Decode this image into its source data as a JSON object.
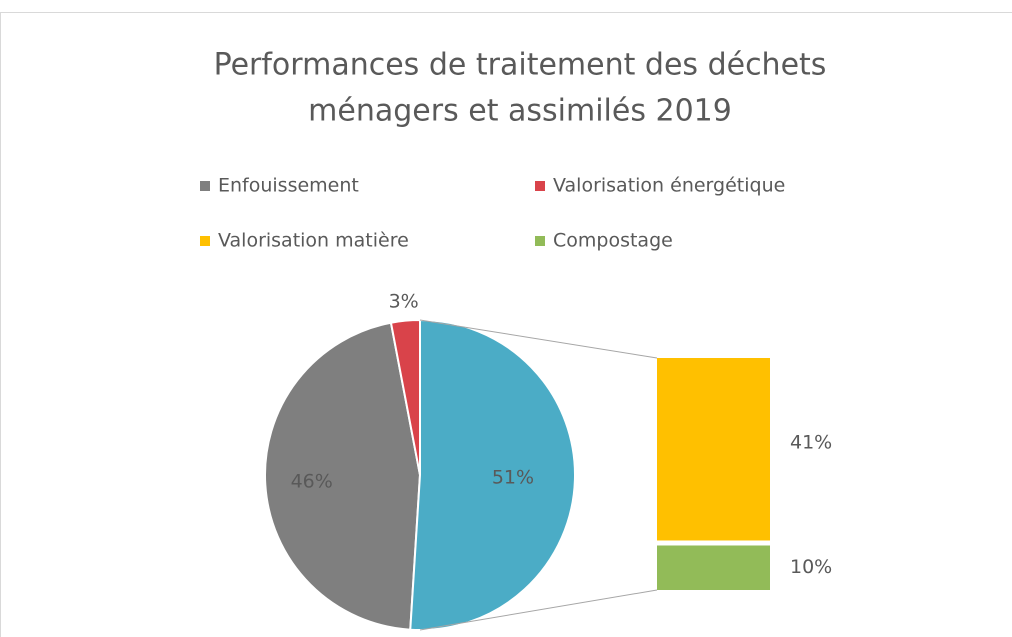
{
  "chart_data": {
    "type": "pie",
    "title": [
      "Performances de traitement des déchets",
      "ménagers et assimilés 2019"
    ],
    "legend": [
      {
        "name": "Enfouissement",
        "color": "#7f7f7f"
      },
      {
        "name": "Valorisation énergétique",
        "color": "#d9434a"
      },
      {
        "name": "Valorisation matière",
        "color": "#ffc000"
      },
      {
        "name": "Compostage",
        "color": "#92bb58"
      }
    ],
    "pie_values": [
      46,
      3,
      51
    ],
    "pie_value_labels": [
      "46%",
      "3%",
      "51%"
    ],
    "pie_colors": [
      "#7f7f7f",
      "#d9434a",
      "#4bacc6"
    ],
    "bar_values": [
      41,
      10
    ],
    "bar_value_labels": [
      "41%",
      "10%"
    ],
    "bar_colors": [
      "#ffc000",
      "#92bb58"
    ]
  }
}
